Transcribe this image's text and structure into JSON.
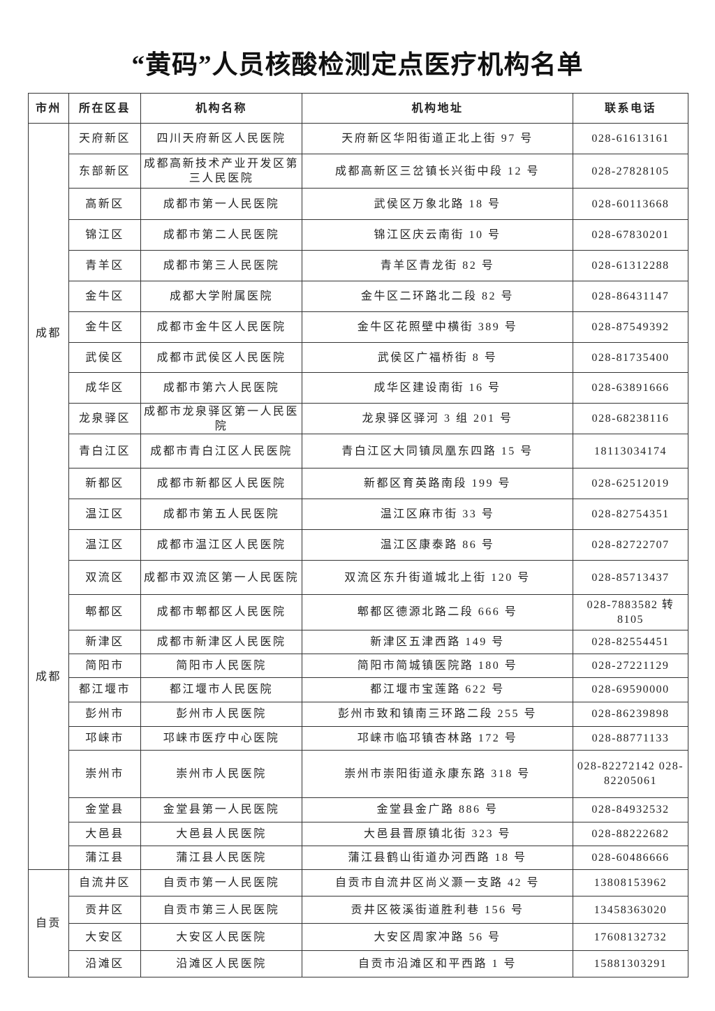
{
  "title": "“黄码”人员核酸检测定点医疗机构名单",
  "headers": [
    "市州",
    "所在区县",
    "机构名称",
    "机构地址",
    "联系电话"
  ],
  "groups": [
    {
      "city": "成都",
      "city_labels": [
        "成都",
        "成都"
      ],
      "rows": [
        {
          "district": "天府新区",
          "name": "四川天府新区人民医院",
          "address": "天府新区华阳街道正北上街 97 号",
          "phone": "028-61613161"
        },
        {
          "district": "东部新区",
          "name": "成都高新技术产业开发区第三人民医院",
          "address": "成都高新区三岔镇长兴街中段 12 号",
          "phone": "028-27828105"
        },
        {
          "district": "高新区",
          "name": "成都市第一人民医院",
          "address": "武侯区万象北路 18 号",
          "phone": "028-60113668"
        },
        {
          "district": "锦江区",
          "name": "成都市第二人民医院",
          "address": "锦江区庆云南街 10 号",
          "phone": "028-67830201"
        },
        {
          "district": "青羊区",
          "name": "成都市第三人民医院",
          "address": "青羊区青龙街 82 号",
          "phone": "028-61312288"
        },
        {
          "district": "金牛区",
          "name": "成都大学附属医院",
          "address": "金牛区二环路北二段 82 号",
          "phone": "028-86431147"
        },
        {
          "district": "金牛区",
          "name": "成都市金牛区人民医院",
          "address": "金牛区花照壁中横街 389 号",
          "phone": "028-87549392"
        },
        {
          "district": "武侯区",
          "name": "成都市武侯区人民医院",
          "address": "武侯区广福桥街 8 号",
          "phone": "028-81735400"
        },
        {
          "district": "成华区",
          "name": "成都市第六人民医院",
          "address": "成华区建设南街 16 号",
          "phone": "028-63891666"
        },
        {
          "district": "龙泉驿区",
          "name": "成都市龙泉驿区第一人民医院",
          "address": "龙泉驿区驿河 3 组 201 号",
          "phone": "028-68238116"
        },
        {
          "district": "青白江区",
          "name": "成都市青白江区人民医院",
          "address": "青白江区大同镇凤凰东四路 15 号",
          "phone": "18113034174"
        },
        {
          "district": "新都区",
          "name": "成都市新都区人民医院",
          "address": "新都区育英路南段 199 号",
          "phone": "028-62512019"
        },
        {
          "district": "温江区",
          "name": "成都市第五人民医院",
          "address": "温江区麻市街 33 号",
          "phone": "028-82754351"
        },
        {
          "district": "温江区",
          "name": "成都市温江区人民医院",
          "address": "温江区康泰路 86 号",
          "phone": "028-82722707"
        },
        {
          "district": "双流区",
          "name": "成都市双流区第一人民医院",
          "address": "双流区东升街道城北上街 120 号",
          "phone": "028-85713437"
        },
        {
          "district": "郫都区",
          "name": "成都市郫都区人民医院",
          "address": "郫都区德源北路二段 666 号",
          "phone": "028-7883582 转 8105"
        },
        {
          "district": "新津区",
          "name": "成都市新津区人民医院",
          "address": "新津区五津西路 149 号",
          "phone": "028-82554451"
        },
        {
          "district": "简阳市",
          "name": "简阳市人民医院",
          "address": "简阳市简城镇医院路 180 号",
          "phone": "028-27221129"
        },
        {
          "district": "都江堰市",
          "name": "都江堰市人民医院",
          "address": "都江堰市宝莲路 622 号",
          "phone": "028-69590000"
        },
        {
          "district": "彭州市",
          "name": "彭州市人民医院",
          "address": "彭州市致和镇南三环路二段 255 号",
          "phone": "028-86239898"
        },
        {
          "district": "邛崃市",
          "name": "邛崃市医疗中心医院",
          "address": "邛崃市临邛镇杏林路 172 号",
          "phone": "028-88771133"
        },
        {
          "district": "崇州市",
          "name": "崇州市人民医院",
          "address": "崇州市崇阳街道永康东路 318 号",
          "phone": "028-82272142 028-82205061"
        },
        {
          "district": "金堂县",
          "name": "金堂县第一人民医院",
          "address": "金堂县金广路 886 号",
          "phone": "028-84932532"
        },
        {
          "district": "大邑县",
          "name": "大邑县人民医院",
          "address": "大邑县晋原镇北街 323 号",
          "phone": "028-88222682"
        },
        {
          "district": "蒲江县",
          "name": "蒲江县人民医院",
          "address": "蒲江县鹤山街道办河西路 18 号",
          "phone": "028-60486666"
        }
      ]
    },
    {
      "city": "自贡",
      "city_labels": [
        "自贡"
      ],
      "rows": [
        {
          "district": "自流井区",
          "name": "自贡市第一人民医院",
          "address": "自贡市自流井区尚义灏一支路 42 号",
          "phone": "13808153962"
        },
        {
          "district": "贡井区",
          "name": "自贡市第三人民医院",
          "address": "贡井区筱溪街道胜利巷 156 号",
          "phone": "13458363020"
        },
        {
          "district": "大安区",
          "name": "大安区人民医院",
          "address": "大安区周家冲路 56 号",
          "phone": "17608132732"
        },
        {
          "district": "沿滩区",
          "name": "沿滩区人民医院",
          "address": "自贡市沿滩区和平西路 1 号",
          "phone": "15881303291"
        }
      ]
    }
  ]
}
